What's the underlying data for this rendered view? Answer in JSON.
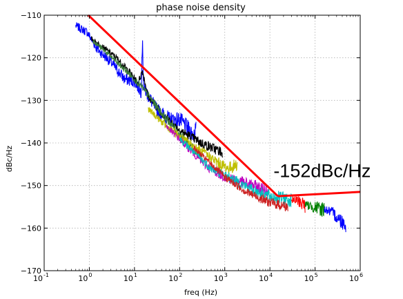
{
  "chart_data": {
    "type": "line",
    "title": "phase noise density",
    "xlabel": "freq (Hz)",
    "ylabel": "dBc/Hz",
    "xscale": "log",
    "xlim": [
      0.1,
      1000000
    ],
    "ylim": [
      -170,
      -110
    ],
    "grid": true,
    "x_ticks": [
      {
        "value": 0.1,
        "base": "10",
        "exp": "-1"
      },
      {
        "value": 1,
        "base": "10",
        "exp": "0"
      },
      {
        "value": 10,
        "base": "10",
        "exp": "1"
      },
      {
        "value": 100,
        "base": "10",
        "exp": "2"
      },
      {
        "value": 1000,
        "base": "10",
        "exp": "3"
      },
      {
        "value": 10000,
        "base": "10",
        "exp": "4"
      },
      {
        "value": 100000,
        "base": "10",
        "exp": "5"
      },
      {
        "value": 1000000,
        "base": "10",
        "exp": "6"
      }
    ],
    "y_ticks": [
      {
        "value": -110,
        "label": "−110"
      },
      {
        "value": -120,
        "label": "−120"
      },
      {
        "value": -130,
        "label": "−130"
      },
      {
        "value": -140,
        "label": "−140"
      },
      {
        "value": -150,
        "label": "−150"
      },
      {
        "value": -160,
        "label": "−160"
      },
      {
        "value": -170,
        "label": "−170"
      }
    ],
    "series": [
      {
        "color": "#0000ff",
        "noise": 1.6,
        "x": [
          0.5,
          0.9,
          1.5,
          3,
          6,
          10,
          14,
          15,
          16,
          30,
          60,
          100,
          200,
          230
        ],
        "y": [
          -112.5,
          -114,
          -118,
          -121,
          -125,
          -125.5,
          -128,
          -116,
          -127,
          -132,
          -134.5,
          -134.5,
          -138,
          -136.5
        ]
      },
      {
        "color": "#000000",
        "noise": 1.0,
        "x": [
          1.1,
          2,
          4,
          8,
          12,
          15,
          20,
          40,
          100,
          300,
          800,
          900
        ],
        "y": [
          -115.5,
          -117.5,
          -120,
          -123.5,
          -126,
          -123,
          -129,
          -133,
          -137,
          -140,
          -142,
          -143
        ]
      },
      {
        "color": "#3a7a3a",
        "noise": 0.9,
        "x": [
          1.2,
          2,
          4,
          8,
          15,
          40,
          100,
          300
        ],
        "y": [
          -116,
          -118,
          -121,
          -124,
          -127,
          -133,
          -138,
          -143
        ]
      },
      {
        "color": "#bfbf00",
        "noise": 1.2,
        "x": [
          20,
          50,
          100,
          300,
          800,
          1200,
          1900
        ],
        "y": [
          -132,
          -136,
          -138.5,
          -142,
          -145,
          -146,
          -145
        ]
      },
      {
        "color": "#bf00bf",
        "noise": 1.2,
        "x": [
          50,
          150,
          400,
          1000,
          3000,
          6000,
          9000
        ],
        "y": [
          -136,
          -141,
          -145.5,
          -148,
          -149.5,
          -150.5,
          -151
        ]
      },
      {
        "color": "#00bfbf",
        "noise": 1.3,
        "x": [
          100,
          500,
          1500,
          4000,
          10000,
          20000,
          30000
        ],
        "y": [
          -139,
          -146,
          -148.5,
          -151,
          -152.5,
          -153,
          -153.5
        ]
      },
      {
        "color": "#cc2222",
        "noise": 1.0,
        "x": [
          200,
          1000,
          3000,
          10000,
          25000
        ],
        "y": [
          -141,
          -148,
          -151.5,
          -154,
          -155
        ]
      },
      {
        "color": "#ff0000",
        "noise": 1.5,
        "x": [
          30000,
          40000,
          50000,
          60000
        ],
        "y": [
          -153.5,
          -153.5,
          -154,
          -154.5
        ]
      },
      {
        "color": "#008000",
        "noise": 1.5,
        "x": [
          60000,
          90000,
          130000,
          160000
        ],
        "y": [
          -154.5,
          -155,
          -155.5,
          -155.5
        ]
      },
      {
        "color": "#0000ff",
        "noise": 1.6,
        "x": [
          160000,
          250000,
          350000,
          480000
        ],
        "y": [
          -155.5,
          -156.5,
          -158,
          -159
        ]
      }
    ],
    "annotation_lines": [
      {
        "color": "#ff0000",
        "x": [
          0.95,
          15000
        ],
        "y": [
          -110,
          -152.5
        ]
      },
      {
        "color": "#ff0000",
        "x": [
          15000,
          1000000
        ],
        "y": [
          -152.5,
          -151.5
        ]
      }
    ],
    "annotation": {
      "text": "-152dBc/Hz",
      "x": 12000,
      "y": -148
    }
  }
}
